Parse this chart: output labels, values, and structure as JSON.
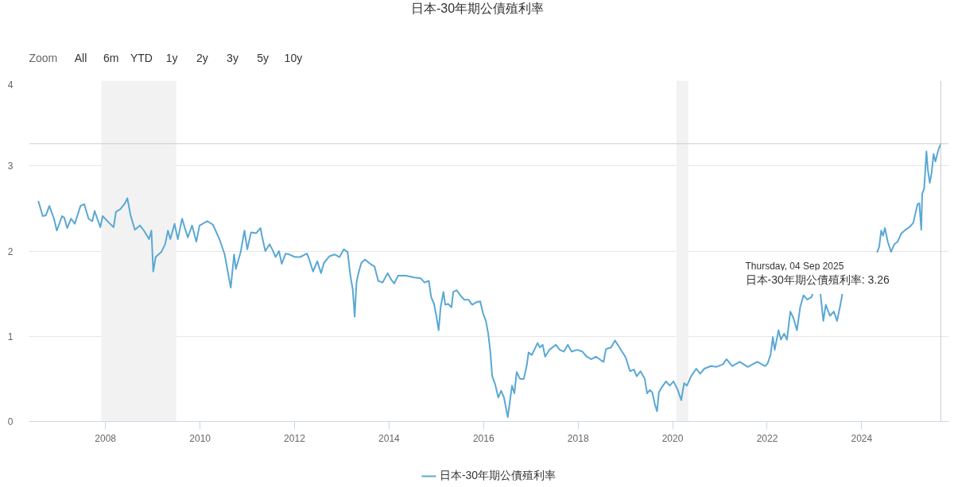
{
  "chart_data": {
    "type": "line",
    "title": "日本-30年期公債殖利率",
    "annotations": [
      "Zoom",
      "All",
      "6m",
      "YTD",
      "1y",
      "2y",
      "3y",
      "5y",
      "10y",
      "Thursday, 04 Sep 2025",
      "日本-30年期公債殖利率: 3.26"
    ],
    "x": [
      "2006-08-01",
      "2006-08-19",
      "2006-09-03",
      "2006-09-28",
      "2006-10-24",
      "2006-11-29",
      "2006-12-21",
      "2007-01-30",
      "2007-02-17",
      "2007-03-11",
      "2007-04-10",
      "2007-05-09",
      "2007-06-22",
      "2007-07-21",
      "2007-08-23",
      "2007-09-21",
      "2007-10-09",
      "2007-11-22",
      "2007-12-10",
      "2008-01-30",
      "2008-03-04",
      "2008-03-22",
      "2008-04-24",
      "2008-05-31",
      "2008-06-18",
      "2008-07-13",
      "2008-08-15",
      "2008-09-24",
      "2008-10-24",
      "2008-12-03",
      "2008-12-21",
      "2009-01-04",
      "2009-01-23",
      "2009-03-08",
      "2009-04-06",
      "2009-04-28",
      "2009-05-16",
      "2009-06-18",
      "2009-07-13",
      "2009-08-15",
      "2009-09-28",
      "2009-10-31",
      "2009-12-03",
      "2009-12-28",
      "2010-02-25",
      "2010-04-10",
      "2010-05-31",
      "2010-07-10",
      "2010-08-26",
      "2010-09-21",
      "2010-10-05",
      "2010-11-11",
      "2010-12-10",
      "2011-01-01",
      "2011-01-30",
      "2011-03-11",
      "2011-04-13",
      "2011-04-24",
      "2011-05-20",
      "2011-06-22",
      "2011-07-13",
      "2011-08-08",
      "2011-09-03",
      "2011-09-24",
      "2011-10-24",
      "2011-11-22",
      "2012-01-04",
      "2012-02-14",
      "2012-04-06",
      "2012-04-24",
      "2012-05-23",
      "2012-06-25",
      "2012-07-24",
      "2012-08-15",
      "2012-09-28",
      "2012-11-07",
      "2012-12-14",
      "2013-01-16",
      "2013-02-14",
      "2013-03-08",
      "2013-03-26",
      "2013-04-10",
      "2013-04-24",
      "2013-05-09",
      "2013-05-31",
      "2013-06-29",
      "2013-08-08",
      "2013-09-10",
      "2013-10-09",
      "2013-11-11",
      "2013-12-21",
      "2014-01-19",
      "2014-02-10",
      "2014-03-11",
      "2014-05-12",
      "2014-07-13",
      "2014-09-03",
      "2014-10-02",
      "2014-11-04",
      "2014-11-22",
      "2014-12-14",
      "2015-01-01",
      "2015-01-19",
      "2015-02-03",
      "2015-02-25",
      "2015-03-11",
      "2015-04-02",
      "2015-04-28",
      "2015-05-12",
      "2015-06-07",
      "2015-07-06",
      "2015-08-04",
      "2015-09-06",
      "2015-10-05",
      "2015-11-07",
      "2015-12-06",
      "2015-12-28",
      "2016-01-19",
      "2016-02-06",
      "2016-02-21",
      "2016-03-08",
      "2016-03-30",
      "2016-04-24",
      "2016-05-16",
      "2016-06-07",
      "2016-07-06",
      "2016-07-24",
      "2016-08-08",
      "2016-08-26",
      "2016-09-13",
      "2016-10-09",
      "2016-11-07",
      "2016-11-29",
      "2016-12-14",
      "2017-01-08",
      "2017-02-21",
      "2017-03-11",
      "2017-04-02",
      "2017-04-21",
      "2017-05-23",
      "2017-07-13",
      "2017-08-12",
      "2017-09-13",
      "2017-10-13",
      "2017-11-11",
      "2017-12-25",
      "2018-02-03",
      "2018-03-08",
      "2018-04-13",
      "2018-05-20",
      "2018-06-25",
      "2018-07-17",
      "2018-08-04",
      "2018-09-13",
      "2018-10-13",
      "2018-11-07",
      "2018-12-06",
      "2019-01-04",
      "2019-02-06",
      "2019-03-08",
      "2019-03-30",
      "2019-04-28",
      "2019-05-31",
      "2019-06-18",
      "2019-07-10",
      "2019-07-28",
      "2019-08-19",
      "2019-09-03",
      "2019-09-17",
      "2019-10-09",
      "2019-11-11",
      "2019-12-10",
      "2020-01-08",
      "2020-02-10",
      "2020-03-08",
      "2020-03-30",
      "2020-04-21",
      "2020-05-23",
      "2020-07-02",
      "2020-08-01",
      "2020-09-03",
      "2020-10-24",
      "2020-12-03",
      "2021-01-23",
      "2021-02-21",
      "2021-04-06",
      "2021-06-03",
      "2021-08-04",
      "2021-10-16",
      "2021-12-17",
      "2022-01-04",
      "2022-01-27",
      "2022-02-14",
      "2022-02-28",
      "2022-03-30",
      "2022-04-17",
      "2022-05-12",
      "2022-06-03",
      "2022-06-29",
      "2022-07-24",
      "2022-08-19",
      "2022-09-13",
      "2022-10-09",
      "2022-11-07",
      "2022-12-10",
      "2022-12-17",
      "2023-01-19",
      "2023-02-17",
      "2023-03-11",
      "2023-03-30",
      "2023-05-01",
      "2023-05-31",
      "2023-06-25",
      "2023-07-21",
      "2023-08-04",
      "2023-12-14",
      "2024-05-01",
      "2024-05-16",
      "2024-05-31",
      "2024-06-14",
      "2024-06-29",
      "2024-07-21",
      "2024-08-15",
      "2024-09-10",
      "2024-10-05",
      "2024-11-04",
      "2024-12-06",
      "2025-01-04",
      "2025-02-03",
      "2025-03-08",
      "2025-03-22",
      "2025-04-06",
      "2025-04-13",
      "2025-04-28",
      "2025-05-16",
      "2025-05-27",
      "2025-06-11",
      "2025-06-25",
      "2025-07-10",
      "2025-07-24",
      "2025-08-08",
      "2025-08-19",
      "2025-09-04"
    ],
    "series": [
      {
        "name": "日本-30年期公債殖利率",
        "color": "#5aa8d4",
        "values": [
          2.58,
          2.49,
          2.41,
          2.42,
          2.53,
          2.38,
          2.24,
          2.41,
          2.39,
          2.27,
          2.38,
          2.32,
          2.53,
          2.55,
          2.38,
          2.35,
          2.47,
          2.28,
          2.41,
          2.33,
          2.28,
          2.46,
          2.49,
          2.56,
          2.62,
          2.42,
          2.25,
          2.3,
          2.24,
          2.14,
          2.24,
          1.76,
          1.93,
          1.99,
          2.08,
          2.24,
          2.14,
          2.32,
          2.14,
          2.38,
          2.16,
          2.3,
          2.11,
          2.3,
          2.35,
          2.31,
          2.14,
          1.96,
          1.57,
          1.96,
          1.79,
          1.99,
          2.24,
          2.02,
          2.22,
          2.21,
          2.27,
          2.18,
          2.0,
          2.08,
          2.02,
          1.93,
          2.0,
          1.85,
          1.97,
          1.96,
          1.93,
          1.93,
          1.97,
          1.9,
          1.76,
          1.88,
          1.74,
          1.86,
          1.94,
          1.96,
          1.93,
          2.02,
          1.99,
          1.71,
          1.55,
          1.23,
          1.63,
          1.74,
          1.86,
          1.9,
          1.85,
          1.82,
          1.65,
          1.63,
          1.74,
          1.66,
          1.62,
          1.71,
          1.71,
          1.69,
          1.68,
          1.63,
          1.65,
          1.46,
          1.38,
          1.24,
          1.07,
          1.34,
          1.52,
          1.37,
          1.38,
          1.34,
          1.52,
          1.54,
          1.48,
          1.43,
          1.43,
          1.37,
          1.4,
          1.41,
          1.27,
          1.18,
          1.03,
          0.84,
          0.53,
          0.44,
          0.28,
          0.36,
          0.28,
          0.05,
          0.25,
          0.42,
          0.33,
          0.58,
          0.5,
          0.5,
          0.65,
          0.81,
          0.78,
          0.92,
          0.87,
          0.9,
          0.76,
          0.84,
          0.9,
          0.84,
          0.82,
          0.9,
          0.82,
          0.84,
          0.82,
          0.76,
          0.73,
          0.76,
          0.72,
          0.7,
          0.85,
          0.87,
          0.95,
          0.89,
          0.82,
          0.75,
          0.59,
          0.61,
          0.53,
          0.59,
          0.5,
          0.33,
          0.37,
          0.34,
          0.19,
          0.12,
          0.34,
          0.4,
          0.47,
          0.42,
          0.47,
          0.37,
          0.25,
          0.45,
          0.42,
          0.53,
          0.62,
          0.56,
          0.62,
          0.65,
          0.64,
          0.67,
          0.73,
          0.65,
          0.7,
          0.64,
          0.7,
          0.65,
          0.68,
          0.78,
          0.99,
          0.84,
          1.07,
          0.96,
          1.03,
          0.96,
          1.29,
          1.21,
          1.07,
          1.34,
          1.48,
          1.43,
          1.46,
          1.49,
          null,
          1.49,
          1.18,
          1.37,
          1.24,
          1.29,
          1.18,
          1.37,
          1.49,
          null,
          1.99,
          2.05,
          2.24,
          2.18,
          2.27,
          2.11,
          1.99,
          2.08,
          2.11,
          2.21,
          2.25,
          2.28,
          2.33,
          2.55,
          2.56,
          2.25,
          2.67,
          2.73,
          3.17,
          2.95,
          2.8,
          2.92,
          3.14,
          3.05,
          3.14,
          3.2,
          3.26
        ]
      }
    ],
    "xlim": [
      "2006-05-20",
      "2025-11-05"
    ],
    "xticks": [
      "2008",
      "2010",
      "2012",
      "2014",
      "2016",
      "2018",
      "2020",
      "2022",
      "2024"
    ],
    "ylim": [
      0,
      4
    ],
    "yticks": [
      0,
      1,
      2,
      3,
      4
    ],
    "grid": "y",
    "legend": "bottom",
    "bands": [
      {
        "axis": "x",
        "from": "2007-12-01",
        "to": "2009-07-01",
        "color": "#f2f2f2"
      },
      {
        "axis": "x",
        "from": "2020-02-01",
        "to": "2020-05-01",
        "color": "#f2f2f2"
      }
    ],
    "ref_lines": [
      {
        "axis": "x",
        "value": "2025-09-04",
        "color": "#cccccc"
      },
      {
        "axis": "y",
        "value": 3.26,
        "color": "#cccccc"
      }
    ]
  }
}
